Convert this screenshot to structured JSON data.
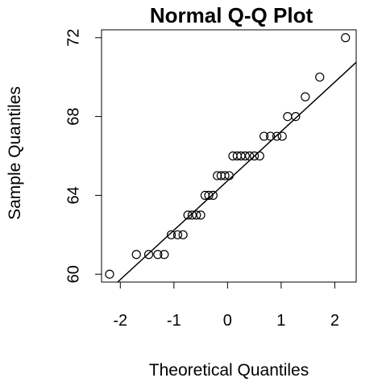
{
  "chart_data": {
    "type": "scatter",
    "title": "Normal Q-Q Plot",
    "xlabel": "Theoretical Quantiles",
    "ylabel": "Sample Quantiles",
    "xlim": [
      -2.35,
      2.4
    ],
    "ylim": [
      59.6,
      72.4
    ],
    "x_ticks": [
      -2,
      -1,
      0,
      1,
      2
    ],
    "y_ticks": [
      60,
      64,
      68,
      72
    ],
    "x_tick_labels": [
      "-2",
      "-1",
      "0",
      "1",
      "2"
    ],
    "y_tick_labels": [
      "60",
      "64",
      "68",
      "72"
    ],
    "grid": false,
    "series": [
      {
        "points": [
          {
            "x": -2.2,
            "y": 60
          },
          {
            "x": -1.7,
            "y": 61
          },
          {
            "x": -1.47,
            "y": 61
          },
          {
            "x": -1.3,
            "y": 61
          },
          {
            "x": -1.18,
            "y": 61
          },
          {
            "x": -1.05,
            "y": 62
          },
          {
            "x": -0.93,
            "y": 62
          },
          {
            "x": -0.83,
            "y": 62
          },
          {
            "x": -0.74,
            "y": 63
          },
          {
            "x": -0.66,
            "y": 63
          },
          {
            "x": -0.58,
            "y": 63
          },
          {
            "x": -0.5,
            "y": 63
          },
          {
            "x": -0.42,
            "y": 64
          },
          {
            "x": -0.35,
            "y": 64
          },
          {
            "x": -0.27,
            "y": 64
          },
          {
            "x": -0.19,
            "y": 65
          },
          {
            "x": -0.12,
            "y": 65
          },
          {
            "x": -0.05,
            "y": 65
          },
          {
            "x": 0.03,
            "y": 65
          },
          {
            "x": 0.1,
            "y": 66
          },
          {
            "x": 0.18,
            "y": 66
          },
          {
            "x": 0.25,
            "y": 66
          },
          {
            "x": 0.33,
            "y": 66
          },
          {
            "x": 0.41,
            "y": 66
          },
          {
            "x": 0.5,
            "y": 66
          },
          {
            "x": 0.6,
            "y": 66
          },
          {
            "x": 0.68,
            "y": 67
          },
          {
            "x": 0.8,
            "y": 67
          },
          {
            "x": 0.92,
            "y": 67
          },
          {
            "x": 1.02,
            "y": 67
          },
          {
            "x": 1.12,
            "y": 68
          },
          {
            "x": 1.27,
            "y": 68
          },
          {
            "x": 1.45,
            "y": 69
          },
          {
            "x": 1.72,
            "y": 70
          },
          {
            "x": 2.2,
            "y": 72
          }
        ]
      }
    ],
    "reference_line": {
      "x1": -2.05,
      "y1": 59.6,
      "x2": 2.4,
      "y2": 70.75
    }
  }
}
